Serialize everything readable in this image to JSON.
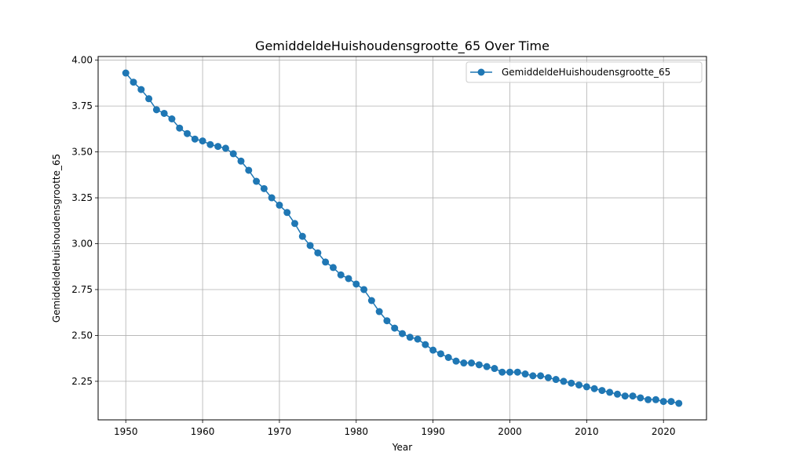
{
  "chart_data": {
    "type": "line",
    "title": "GemiddeldeHuishoudensgrootte_65 Over Time",
    "xlabel": "Year",
    "ylabel": "GemiddeldeHuishoudensgrootte_65",
    "xlim": [
      1946.4,
      2025.6
    ],
    "ylim": [
      2.04,
      4.02
    ],
    "x_ticks": [
      1950,
      1960,
      1970,
      1980,
      1990,
      2000,
      2010,
      2020
    ],
    "y_ticks": [
      2.25,
      2.5,
      2.75,
      3.0,
      3.25,
      3.5,
      3.75,
      4.0
    ],
    "x_tick_labels": [
      "1950",
      "1960",
      "1970",
      "1980",
      "1990",
      "2000",
      "2010",
      "2020"
    ],
    "y_tick_labels": [
      "2.25",
      "2.50",
      "2.75",
      "3.00",
      "3.25",
      "3.50",
      "3.75",
      "4.00"
    ],
    "grid": true,
    "legend_position": "top-right",
    "marker": "circle",
    "series": [
      {
        "name": "GemiddeldeHuishoudensgrootte_65",
        "color": "#1f77b4",
        "x": [
          1950,
          1951,
          1952,
          1953,
          1954,
          1955,
          1956,
          1957,
          1958,
          1959,
          1960,
          1961,
          1962,
          1963,
          1964,
          1965,
          1966,
          1967,
          1968,
          1969,
          1970,
          1971,
          1972,
          1973,
          1974,
          1975,
          1976,
          1977,
          1978,
          1979,
          1980,
          1981,
          1982,
          1983,
          1984,
          1985,
          1986,
          1987,
          1988,
          1989,
          1990,
          1991,
          1992,
          1993,
          1994,
          1995,
          1996,
          1997,
          1998,
          1999,
          2000,
          2001,
          2002,
          2003,
          2004,
          2005,
          2006,
          2007,
          2008,
          2009,
          2010,
          2011,
          2012,
          2013,
          2014,
          2015,
          2016,
          2017,
          2018,
          2019,
          2020,
          2021,
          2022
        ],
        "values": [
          3.93,
          3.88,
          3.84,
          3.79,
          3.73,
          3.71,
          3.68,
          3.63,
          3.6,
          3.57,
          3.56,
          3.54,
          3.53,
          3.52,
          3.49,
          3.45,
          3.4,
          3.34,
          3.3,
          3.25,
          3.21,
          3.17,
          3.11,
          3.04,
          2.99,
          2.95,
          2.9,
          2.87,
          2.83,
          2.81,
          2.78,
          2.75,
          2.69,
          2.63,
          2.58,
          2.54,
          2.51,
          2.49,
          2.48,
          2.45,
          2.42,
          2.4,
          2.38,
          2.36,
          2.35,
          2.35,
          2.34,
          2.33,
          2.32,
          2.3,
          2.3,
          2.3,
          2.29,
          2.28,
          2.28,
          2.27,
          2.26,
          2.25,
          2.24,
          2.23,
          2.22,
          2.21,
          2.2,
          2.19,
          2.18,
          2.17,
          2.17,
          2.16,
          2.15,
          2.15,
          2.14,
          2.14,
          2.13
        ]
      }
    ]
  }
}
